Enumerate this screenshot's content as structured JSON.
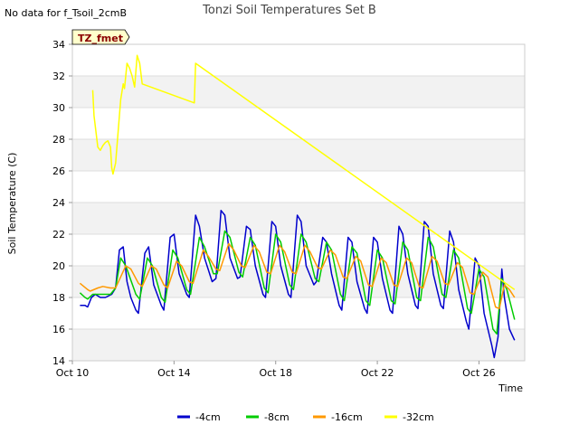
{
  "note": "No data for f_Tsoil_2cmB",
  "chart_data": {
    "type": "line",
    "title": "Tonzi Soil Temperatures Set B",
    "xlabel": "Time",
    "ylabel": "Soil Temperature (C)",
    "xlim": [
      10,
      27.8
    ],
    "ylim": [
      14,
      34
    ],
    "x_ticks": [
      {
        "value": 10,
        "label": "Oct 10"
      },
      {
        "value": 14,
        "label": "Oct 14"
      },
      {
        "value": 18,
        "label": "Oct 18"
      },
      {
        "value": 22,
        "label": "Oct 22"
      },
      {
        "value": 26,
        "label": "Oct 26"
      }
    ],
    "y_ticks": [
      14,
      16,
      18,
      20,
      22,
      24,
      26,
      28,
      30,
      32,
      34
    ],
    "grid": true,
    "legend_position": "bottom",
    "badge": "TZ_fmet",
    "series": [
      {
        "name": "-4cm",
        "color": "#0000cc",
        "x": [
          10.3,
          10.5,
          10.6,
          10.75,
          10.9,
          11.1,
          11.3,
          11.55,
          11.7,
          11.85,
          12.0,
          12.15,
          12.3,
          12.5,
          12.6,
          12.85,
          13.0,
          13.2,
          13.5,
          13.6,
          13.85,
          14.0,
          14.2,
          14.5,
          14.6,
          14.85,
          15.0,
          15.2,
          15.5,
          15.65,
          15.85,
          16.0,
          16.2,
          16.5,
          16.6,
          16.85,
          17.0,
          17.2,
          17.5,
          17.6,
          17.85,
          18.0,
          18.2,
          18.5,
          18.6,
          18.85,
          19.0,
          19.2,
          19.5,
          19.6,
          19.85,
          20.0,
          20.2,
          20.5,
          20.6,
          20.85,
          21.0,
          21.2,
          21.5,
          21.6,
          21.85,
          22.0,
          22.2,
          22.5,
          22.6,
          22.85,
          23.0,
          23.2,
          23.5,
          23.6,
          23.85,
          24.0,
          24.2,
          24.5,
          24.6,
          24.85,
          25.0,
          25.2,
          25.5,
          25.6,
          25.85,
          26.0,
          26.2,
          26.5,
          26.6,
          26.75,
          26.9,
          27.0,
          27.2,
          27.4
        ],
        "y": [
          17.5,
          17.5,
          17.4,
          18.0,
          18.2,
          18.0,
          18.0,
          18.2,
          18.6,
          21.0,
          21.2,
          19.0,
          18.0,
          17.2,
          17.0,
          20.8,
          21.2,
          18.8,
          17.5,
          17.2,
          21.8,
          22.0,
          19.5,
          18.2,
          18.0,
          23.2,
          22.5,
          20.5,
          19.0,
          19.2,
          23.5,
          23.2,
          20.5,
          19.2,
          19.3,
          22.5,
          22.3,
          20.0,
          18.2,
          18.0,
          22.8,
          22.5,
          20.0,
          18.2,
          18.0,
          23.2,
          22.8,
          20.0,
          18.8,
          19.0,
          21.8,
          21.5,
          19.5,
          17.5,
          17.2,
          21.8,
          21.5,
          19.0,
          17.3,
          17.0,
          21.8,
          21.5,
          19.2,
          17.2,
          17.0,
          22.5,
          22.0,
          19.5,
          17.5,
          17.3,
          22.8,
          22.5,
          19.5,
          17.5,
          17.3,
          22.2,
          21.5,
          18.5,
          16.5,
          16.0,
          20.5,
          20.0,
          17.0,
          15.0,
          14.2,
          15.5,
          19.8,
          18.0,
          16.0,
          15.3
        ]
      },
      {
        "name": "-8cm",
        "color": "#00cc00",
        "x": [
          10.3,
          10.5,
          10.6,
          10.8,
          11.0,
          11.5,
          11.7,
          11.9,
          12.1,
          12.5,
          12.65,
          12.95,
          13.15,
          13.5,
          13.65,
          13.95,
          14.15,
          14.5,
          14.65,
          15.0,
          15.2,
          15.55,
          15.7,
          16.0,
          16.2,
          16.55,
          16.7,
          17.0,
          17.2,
          17.55,
          17.7,
          18.0,
          18.2,
          18.55,
          18.7,
          19.0,
          19.2,
          19.55,
          19.7,
          20.0,
          20.2,
          20.55,
          20.7,
          21.0,
          21.2,
          21.55,
          21.7,
          22.0,
          22.2,
          22.55,
          22.7,
          23.0,
          23.2,
          23.55,
          23.7,
          24.0,
          24.2,
          24.55,
          24.7,
          25.0,
          25.2,
          25.55,
          25.7,
          26.0,
          26.2,
          26.55,
          26.7,
          26.9,
          27.1,
          27.4
        ],
        "y": [
          18.3,
          18.0,
          17.9,
          18.2,
          18.2,
          18.2,
          18.6,
          20.5,
          20.0,
          18.2,
          17.9,
          20.5,
          20.0,
          18.0,
          17.7,
          21.0,
          20.5,
          18.5,
          18.2,
          21.8,
          21.2,
          19.5,
          19.5,
          22.2,
          21.8,
          19.6,
          19.3,
          21.8,
          21.3,
          18.6,
          18.3,
          22.0,
          21.5,
          18.8,
          18.5,
          22.0,
          21.5,
          19.2,
          19.0,
          21.5,
          21.0,
          18.2,
          17.8,
          21.2,
          20.8,
          17.8,
          17.5,
          21.0,
          20.5,
          17.8,
          17.6,
          21.5,
          21.0,
          18.0,
          17.8,
          21.8,
          21.2,
          18.2,
          18.0,
          21.0,
          20.5,
          17.3,
          17.0,
          19.8,
          19.3,
          16.0,
          15.7,
          19.2,
          18.5,
          16.6
        ]
      },
      {
        "name": "-16cm",
        "color": "#ff9900",
        "x": [
          10.3,
          10.6,
          10.7,
          11.0,
          11.2,
          11.5,
          11.7,
          12.1,
          12.3,
          12.6,
          12.75,
          13.1,
          13.3,
          13.6,
          13.75,
          14.1,
          14.3,
          14.6,
          14.75,
          15.15,
          15.35,
          15.65,
          15.8,
          16.15,
          16.35,
          16.65,
          16.8,
          17.15,
          17.35,
          17.65,
          17.8,
          18.15,
          18.35,
          18.65,
          18.8,
          19.15,
          19.35,
          19.65,
          19.8,
          20.15,
          20.35,
          20.65,
          20.8,
          21.15,
          21.35,
          21.65,
          21.8,
          22.15,
          22.35,
          22.65,
          22.8,
          23.15,
          23.35,
          23.65,
          23.8,
          24.15,
          24.35,
          24.65,
          24.8,
          25.15,
          25.35,
          25.65,
          25.8,
          26.15,
          26.35,
          26.65,
          26.8,
          27.0,
          27.2,
          27.4
        ],
        "y": [
          18.9,
          18.5,
          18.4,
          18.6,
          18.7,
          18.6,
          18.6,
          20.0,
          19.8,
          18.9,
          18.7,
          20.0,
          19.8,
          18.8,
          18.6,
          20.3,
          20.0,
          19.0,
          18.9,
          21.0,
          20.6,
          19.8,
          19.7,
          21.4,
          21.0,
          20.0,
          19.9,
          21.3,
          20.9,
          19.6,
          19.5,
          21.3,
          20.9,
          19.6,
          19.5,
          21.3,
          20.9,
          19.9,
          19.8,
          21.0,
          20.7,
          19.3,
          19.2,
          20.6,
          20.3,
          18.8,
          18.7,
          20.5,
          20.2,
          18.8,
          18.7,
          20.5,
          20.2,
          18.7,
          18.6,
          20.6,
          20.3,
          18.9,
          18.8,
          20.2,
          19.9,
          18.3,
          18.2,
          19.6,
          19.3,
          17.4,
          17.3,
          18.8,
          18.5,
          18.0
        ]
      },
      {
        "name": "-32cm",
        "color": "#ffff00",
        "x": [
          10.8,
          10.85,
          11.0,
          11.1,
          11.2,
          11.3,
          11.4,
          11.5,
          11.55,
          11.6,
          11.7,
          11.8,
          11.9,
          12.0,
          12.05,
          12.15,
          12.25,
          12.35,
          12.45,
          12.55,
          12.65,
          12.75,
          14.8,
          14.85,
          27.4
        ],
        "y": [
          31.1,
          29.5,
          27.5,
          27.3,
          27.6,
          27.8,
          27.9,
          27.5,
          26.2,
          25.8,
          26.5,
          28.5,
          30.5,
          31.5,
          31.2,
          32.8,
          32.5,
          32.0,
          31.3,
          33.3,
          32.8,
          31.5,
          30.3,
          32.8,
          18.5
        ]
      }
    ]
  }
}
